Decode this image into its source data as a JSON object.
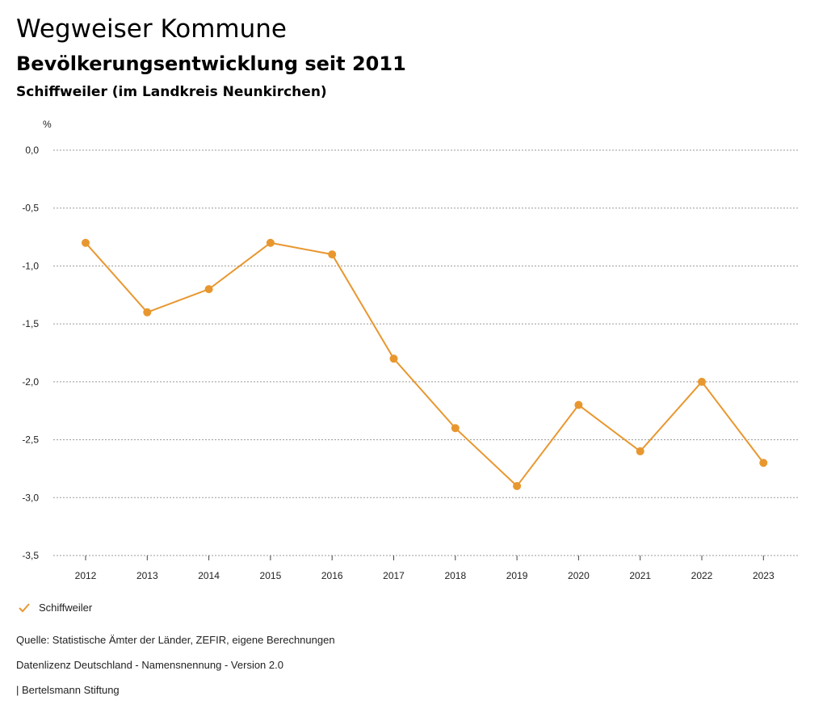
{
  "header": {
    "title": "Wegweiser Kommune",
    "subtitle": "Bevölkerungsentwicklung seit 2011",
    "region": "Schiffweiler (im Landkreis Neunkirchen)"
  },
  "chart_data": {
    "type": "line",
    "unit": "%",
    "categories": [
      "2012",
      "2013",
      "2014",
      "2015",
      "2016",
      "2017",
      "2018",
      "2019",
      "2020",
      "2021",
      "2022",
      "2023"
    ],
    "series": [
      {
        "name": "Schiffweiler",
        "color": "#e8972f",
        "values": [
          -0.8,
          -1.4,
          -1.2,
          -0.8,
          -0.9,
          -1.8,
          -2.4,
          -2.9,
          -2.2,
          -2.6,
          -2.0,
          -2.7
        ]
      }
    ],
    "ylim": [
      -3.5,
      0.0
    ],
    "yticks": [
      0.0,
      -0.5,
      -1.0,
      -1.5,
      -2.0,
      -2.5,
      -3.0,
      -3.5
    ],
    "ytick_labels": [
      "0,0",
      "-0,5",
      "-1,0",
      "-1,5",
      "-2,0",
      "-2,5",
      "-3,0",
      "-3,5"
    ],
    "grid": true,
    "legend_position": "bottom-left"
  },
  "legend": {
    "label": "Schiffweiler",
    "icon": "check-icon"
  },
  "footer": {
    "source": "Quelle: Statistische Ämter der Länder, ZEFIR, eigene Berechnungen",
    "license": "Datenlizenz Deutschland - Namensnennung - Version 2.0",
    "publisher": "| Bertelsmann Stiftung"
  }
}
